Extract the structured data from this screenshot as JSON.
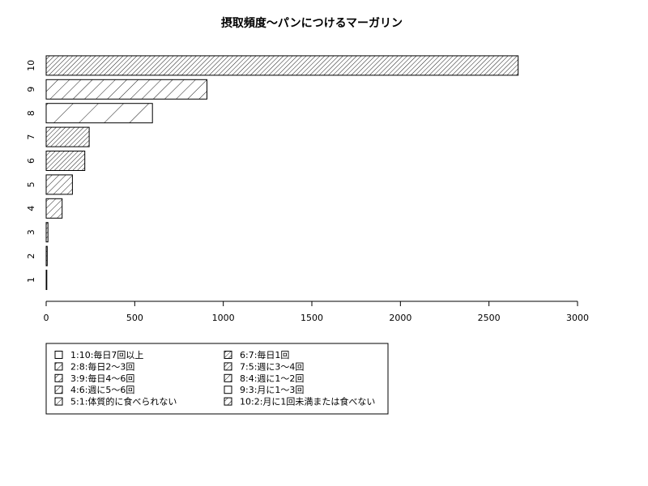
{
  "chart_data": {
    "type": "bar",
    "orientation": "horizontal",
    "title": "摂取頻度～パンにつけるマーガリン",
    "xlabel": "",
    "ylabel": "",
    "xlim": [
      0,
      3000
    ],
    "x_ticks": [
      0,
      500,
      1000,
      1500,
      2000,
      2500,
      3000
    ],
    "categories": [
      "1",
      "2",
      "3",
      "4",
      "5",
      "6",
      "7",
      "8",
      "9",
      "10"
    ],
    "values": [
      3,
      6,
      10,
      90,
      148,
      218,
      243,
      600,
      908,
      2665
    ],
    "grid": false,
    "legend_position": "bottom-left",
    "legend": [
      "1:10:毎日7回以上",
      "2:8:毎日2～3回",
      "3:9:毎日4～6回",
      "4:6:週に5～6回",
      "5:1:体質的に食べられない",
      "6:7:毎日1回",
      "7:5:週に3～4回",
      "8:4:週に1～2回",
      "9:3:月に1～3回",
      "10:2:月に1回未満または食べない"
    ]
  }
}
